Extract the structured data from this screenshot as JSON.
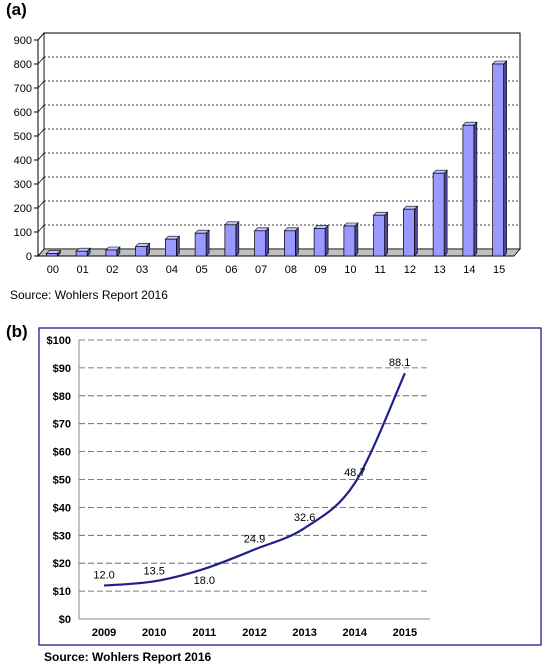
{
  "panel_a": {
    "label": "(a)",
    "source": "Source: Wohlers Report 2016"
  },
  "panel_b": {
    "label": "(b)",
    "source": "Source: Wohlers Report 2016"
  },
  "chart_data": [
    {
      "type": "bar",
      "title": "",
      "xlabel": "",
      "ylabel": "",
      "categories": [
        "00",
        "01",
        "02",
        "03",
        "04",
        "05",
        "06",
        "07",
        "08",
        "09",
        "10",
        "11",
        "12",
        "13",
        "14",
        "15"
      ],
      "values": [
        10,
        20,
        25,
        40,
        70,
        95,
        130,
        105,
        105,
        115,
        125,
        170,
        195,
        345,
        545,
        800
      ],
      "ylim": [
        0,
        900
      ],
      "yticks": [
        "0",
        "100",
        "200",
        "300",
        "400",
        "500",
        "600",
        "700",
        "800",
        "900"
      ],
      "grid": true,
      "colors": {
        "bar": "#9999ff",
        "bar_side": "#4a4a9c",
        "bar_top": "#c6c6ff",
        "floor": "#c0c0c0"
      }
    },
    {
      "type": "line",
      "title": "",
      "xlabel": "",
      "ylabel": "",
      "categories": [
        "2009",
        "2010",
        "2011",
        "2012",
        "2013",
        "2014",
        "2015"
      ],
      "values": [
        12.0,
        13.5,
        18.0,
        24.9,
        32.6,
        48.7,
        88.1
      ],
      "data_labels": [
        "12.0",
        "13.5",
        "18.0",
        "24.9",
        "32.6",
        "48.7",
        "88.1"
      ],
      "ylim": [
        0,
        100
      ],
      "yticks": [
        "$0",
        "$10",
        "$20",
        "$30",
        "$40",
        "$50",
        "$60",
        "$70",
        "$80",
        "$90",
        "$100"
      ],
      "grid": true,
      "colors": {
        "line": "#1f1f8c",
        "frame": "#1f1f8c"
      }
    }
  ]
}
